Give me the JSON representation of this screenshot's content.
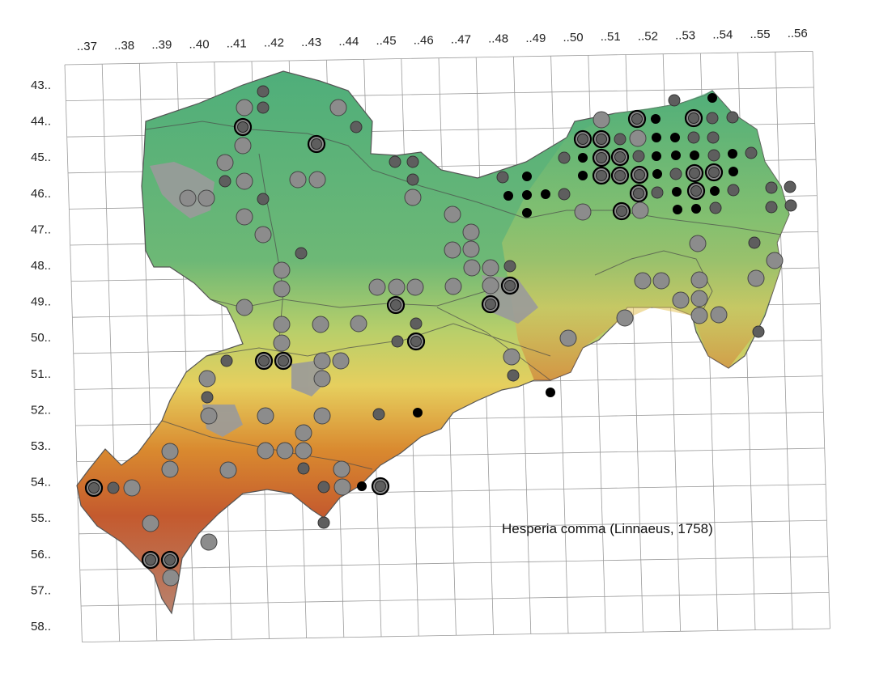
{
  "map": {
    "species_label": "Hesperia comma (Linnaeus, 1758)",
    "column_labels": [
      "..37",
      "..38",
      "..39",
      "..40",
      "..41",
      "..42",
      "..43",
      "..44",
      "..45",
      "..46",
      "..47",
      "..48",
      "..49",
      "..50",
      "..51",
      "..52",
      "..53",
      "..54",
      "..55",
      "..56"
    ],
    "row_labels": [
      "43..",
      "44..",
      "45..",
      "46..",
      "47..",
      "48..",
      "49..",
      "50..",
      "51..",
      "52..",
      "53..",
      "54..",
      "55..",
      "56..",
      "57..",
      "58.."
    ],
    "colors": {
      "lowland": "#4fae7a",
      "hill": "#8fc46a",
      "upland": "#e6cf5e",
      "mountain": "#c45a2e",
      "summit": "#a8796a",
      "urban": "#9a9a9a",
      "record_old": "#8c8c8c",
      "record_mid": "#5e5e5e",
      "record_recent": "#000000"
    },
    "legend_note": ""
  }
}
